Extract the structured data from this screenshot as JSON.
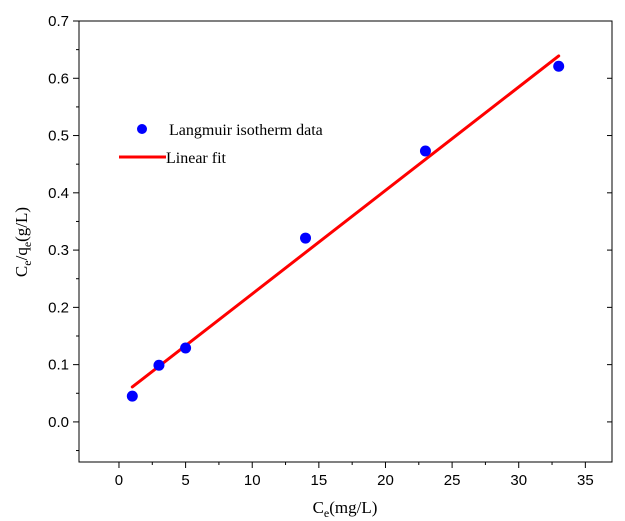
{
  "chart_data": {
    "type": "scatter",
    "title": "",
    "xlabel": {
      "main": "C",
      "sub": "e",
      "rest": "(mg/L)"
    },
    "ylabel": {
      "c": "C",
      "c_sub": "e",
      "slash_q": "/q",
      "q_sub": "e",
      "rest": "(g/L)"
    },
    "xlim": [
      -3,
      37
    ],
    "ylim": [
      -0.07,
      0.7
    ],
    "x_ticks": [
      0,
      5,
      10,
      15,
      20,
      25,
      30,
      35
    ],
    "x_tick_labels": [
      "0",
      "5",
      "10",
      "15",
      "20",
      "25",
      "30",
      "35"
    ],
    "y_ticks": [
      0.0,
      0.1,
      0.2,
      0.3,
      0.4,
      0.5,
      0.6,
      0.7
    ],
    "y_tick_labels": [
      "0.0",
      "0.1",
      "0.2",
      "0.3",
      "0.4",
      "0.5",
      "0.6",
      "0.7"
    ],
    "grid": false,
    "legend_position": "upper-left",
    "series": [
      {
        "name": "Langmuir isotherm data",
        "kind": "scatter",
        "color": "#0000ff",
        "x": [
          1,
          3,
          5,
          14,
          23,
          33
        ],
        "y": [
          0.045,
          0.099,
          0.129,
          0.321,
          0.473,
          0.621
        ]
      },
      {
        "name": "Linear fit",
        "kind": "line",
        "color": "#ff0000",
        "x": [
          1,
          33
        ],
        "y": [
          0.061,
          0.639
        ]
      }
    ]
  }
}
